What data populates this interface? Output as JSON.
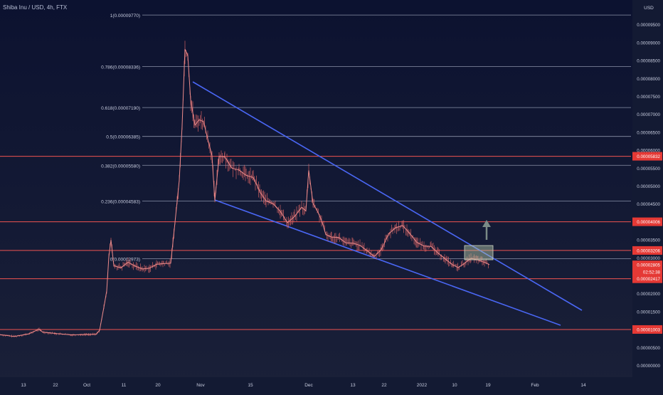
{
  "header": {
    "title": "Shiba Inu / USD, 4h, FTX"
  },
  "chart_data": {
    "type": "line",
    "title": "Shiba Inu / USD, 4h, FTX",
    "currency": "USD",
    "x_ticks": [
      "13",
      "22",
      "Oct",
      "11",
      "20",
      "Nov",
      "15",
      "Dec",
      "13",
      "22",
      "2022",
      "10",
      "19",
      "Feb",
      "14"
    ],
    "y_ticks": [
      "0.00000000",
      "0.00000500",
      "0.00001500",
      "0.00002000",
      "0.00003000",
      "0.00003500",
      "0.00004500",
      "0.00005000",
      "0.00005500",
      "0.00006000",
      "0.00006500",
      "0.00007000",
      "0.00007500",
      "0.00008000",
      "0.00008500",
      "0.00009000",
      "0.00009500"
    ],
    "ylim": [
      0,
      9.78e-05
    ],
    "fib_levels": [
      {
        "label": "1(0.00009770)",
        "value": 9.77e-05
      },
      {
        "label": "0.786(0.00008336)",
        "value": 8.336e-05
      },
      {
        "label": "0.618(0.00007190)",
        "value": 7.19e-05
      },
      {
        "label": "0.5(0.00006385)",
        "value": 6.385e-05
      },
      {
        "label": "0.382(0.00005580)",
        "value": 5.58e-05
      },
      {
        "label": "0.236(0.00004583)",
        "value": 4.583e-05
      },
      {
        "label": "0(0.00002973)",
        "value": 2.973e-05
      }
    ],
    "horizontal_levels": [
      {
        "label": "0.00005832",
        "value": 5.832e-05
      },
      {
        "label": "0.00004006",
        "value": 4.006e-05
      },
      {
        "label": "0.00003206",
        "value": 3.206e-05
      },
      {
        "label": "0.00002417",
        "value": 2.417e-05
      },
      {
        "label": "0.00001003",
        "value": 1.003e-05
      }
    ],
    "current_price": {
      "value": "0.00002805",
      "countdown": "02:52:38"
    },
    "price_path": [
      [
        0,
        8.59e-06
      ],
      [
        20,
        8.1e-06
      ],
      [
        40,
        8.77e-06
      ],
      [
        55,
        1.01e-05
      ],
      [
        60,
        9.3e-06
      ],
      [
        80,
        8.86e-06
      ],
      [
        100,
        8.53e-06
      ],
      [
        120,
        8.64e-06
      ],
      [
        135,
        8.7e-06
      ],
      [
        140,
        9.8e-06
      ],
      [
        146,
        1.62e-05
      ],
      [
        150,
        2.08e-05
      ],
      [
        153,
        3.03e-05
      ],
      [
        156,
        3.5e-05
      ],
      [
        160,
        2.78e-05
      ],
      [
        170,
        2.72e-05
      ],
      [
        180,
        2.88e-05
      ],
      [
        190,
        2.77e-05
      ],
      [
        200,
        2.69e-05
      ],
      [
        210,
        2.71e-05
      ],
      [
        220,
        2.82e-05
      ],
      [
        230,
        2.84e-05
      ],
      [
        240,
        2.85e-05
      ],
      [
        246,
        3.99e-05
      ],
      [
        252,
        5.16e-05
      ],
      [
        256,
        6.68e-05
      ],
      [
        260,
        8.82e-05
      ],
      [
        264,
        8.64e-05
      ],
      [
        268,
        7.4e-05
      ],
      [
        274,
        6.7e-05
      ],
      [
        280,
        6.85e-05
      ],
      [
        286,
        6.8e-05
      ],
      [
        292,
        6.32e-05
      ],
      [
        298,
        5.85e-05
      ],
      [
        302,
        4.6e-05
      ],
      [
        308,
        5.83e-05
      ],
      [
        316,
        5.82e-05
      ],
      [
        326,
        5.5e-05
      ],
      [
        336,
        5.45e-05
      ],
      [
        346,
        5.3e-05
      ],
      [
        356,
        5.24e-05
      ],
      [
        366,
        4.82e-05
      ],
      [
        374,
        4.59e-05
      ],
      [
        384,
        4.51e-05
      ],
      [
        394,
        4.3e-05
      ],
      [
        404,
        3.98e-05
      ],
      [
        414,
        4.15e-05
      ],
      [
        424,
        4.41e-05
      ],
      [
        430,
        4.31e-05
      ],
      [
        434,
        5.44e-05
      ],
      [
        440,
        4.52e-05
      ],
      [
        446,
        4.31e-05
      ],
      [
        452,
        4.05e-05
      ],
      [
        458,
        3.65e-05
      ],
      [
        466,
        3.58e-05
      ],
      [
        476,
        3.57e-05
      ],
      [
        486,
        3.42e-05
      ],
      [
        496,
        3.41e-05
      ],
      [
        506,
        3.35e-05
      ],
      [
        516,
        3.2e-05
      ],
      [
        526,
        3.04e-05
      ],
      [
        536,
        3.23e-05
      ],
      [
        546,
        3.66e-05
      ],
      [
        556,
        3.84e-05
      ],
      [
        566,
        3.9e-05
      ],
      [
        576,
        3.68e-05
      ],
      [
        586,
        3.43e-05
      ],
      [
        596,
        3.33e-05
      ],
      [
        606,
        3.32e-05
      ],
      [
        616,
        3.13e-05
      ],
      [
        626,
        2.97e-05
      ],
      [
        636,
        2.81e-05
      ],
      [
        644,
        2.73e-05
      ],
      [
        652,
        2.83e-05
      ],
      [
        662,
        2.99e-05
      ],
      [
        672,
        2.94e-05
      ],
      [
        682,
        2.87e-05
      ],
      [
        688,
        2.81e-05
      ]
    ]
  }
}
